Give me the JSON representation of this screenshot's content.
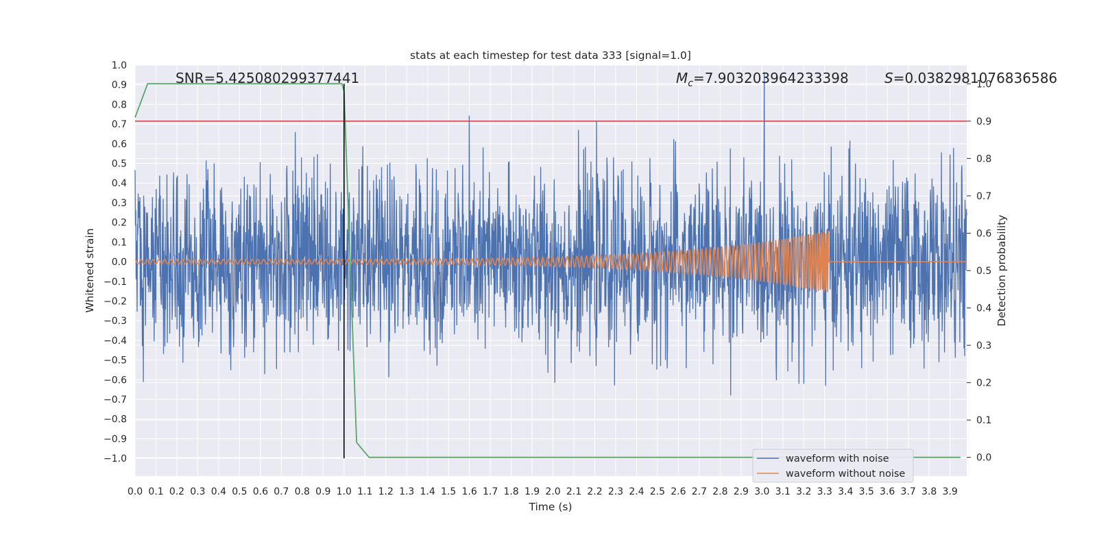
{
  "chart_data": {
    "type": "line",
    "title": "stats at each timestep for test data 333 [signal=1.0]",
    "xlabel": "Time (s)",
    "ylabel": "Whitened strain",
    "ylabel_right": "Detection probability",
    "xlim": [
      0.0,
      3.98
    ],
    "ylim": [
      -1.09,
      1.0
    ],
    "ylim_right": [
      -0.05,
      1.05
    ],
    "x_ticks": [
      "0.0",
      "0.1",
      "0.2",
      "0.3",
      "0.4",
      "0.5",
      "0.6",
      "0.7",
      "0.8",
      "0.9",
      "1.0",
      "1.1",
      "1.2",
      "1.3",
      "1.4",
      "1.5",
      "1.6",
      "1.7",
      "1.8",
      "1.9",
      "2.0",
      "2.1",
      "2.2",
      "2.3",
      "2.4",
      "2.5",
      "2.6",
      "2.7",
      "2.8",
      "2.9",
      "3.0",
      "3.1",
      "3.2",
      "3.3",
      "3.4",
      "3.5",
      "3.6",
      "3.7",
      "3.8",
      "3.9"
    ],
    "y_ticks": [
      "1.0",
      "0.9",
      "0.8",
      "0.7",
      "0.6",
      "0.5",
      "0.4",
      "0.3",
      "0.2",
      "0.1",
      "0.0",
      "−0.1",
      "−0.2",
      "−0.3",
      "−0.4",
      "−0.5",
      "−0.6",
      "−0.7",
      "−0.8",
      "−0.9",
      "−1.0"
    ],
    "y_ticks_right": [
      "1.0",
      "0.9",
      "0.8",
      "0.7",
      "0.6",
      "0.5",
      "0.4",
      "0.3",
      "0.2",
      "0.1",
      "0.0"
    ],
    "annotations": {
      "snr": "SNR=5.425080299377441",
      "mc_symbol": "M",
      "mc_sub": "c",
      "mc_value": "=7.903203964233398",
      "s_symbol": "S",
      "s_value": "=0.038298107683658​6"
    },
    "series": [
      {
        "name": "waveform with noise",
        "color": "#4c72b0",
        "amplitude_typical": 0.45,
        "amplitude_max": 1.0
      },
      {
        "name": "waveform without noise",
        "color": "#dd8452",
        "chirp": {
          "t_start": 0.0,
          "t_merger": 3.32,
          "amp_start": 0.012,
          "amp_merger": 0.16,
          "ringdown_level": 0.0
        }
      },
      {
        "name": "detection probability",
        "color": "#55a868",
        "axis": "right",
        "x": [
          0.0,
          0.06,
          0.12,
          0.2,
          0.5,
          0.99,
          1.0,
          1.06,
          1.12,
          3.95
        ],
        "values": [
          0.91,
          1.0,
          1.0,
          1.0,
          1.0,
          1.0,
          0.98,
          0.04,
          0.0,
          0.0
        ]
      }
    ],
    "threshold": {
      "axis": "right",
      "value": 0.9,
      "color": "#c44e52"
    },
    "vline": {
      "x": 1.0,
      "color": "#000000"
    },
    "legend": {
      "position": "lower-right",
      "entries": [
        "waveform with noise",
        "waveform without noise"
      ]
    }
  }
}
